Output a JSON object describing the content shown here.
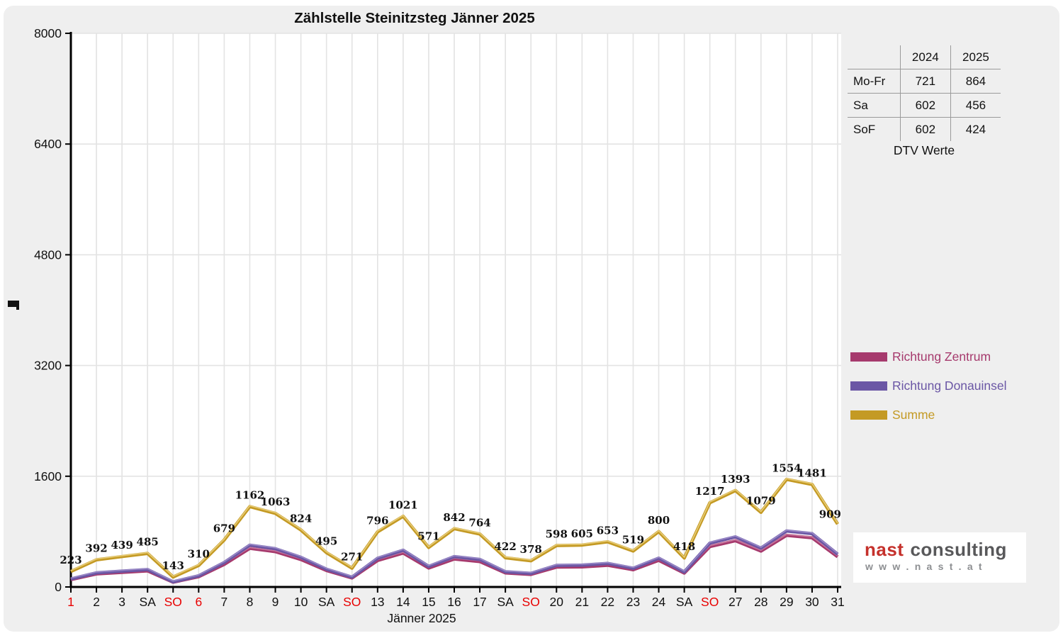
{
  "title": "Zählstelle Steinitzsteg Jänner 2025",
  "x_axis_title": "Jänner 2025",
  "chart_data": {
    "type": "line",
    "x_tick_labels": [
      "1",
      "2",
      "3",
      "SA",
      "SO",
      "6",
      "7",
      "8",
      "9",
      "10",
      "SA",
      "SO",
      "13",
      "14",
      "15",
      "16",
      "17",
      "SA",
      "SO",
      "20",
      "21",
      "22",
      "23",
      "24",
      "SA",
      "SO",
      "27",
      "28",
      "29",
      "30",
      "31"
    ],
    "x_tick_red_indexes": [
      0,
      4,
      5,
      11,
      18,
      25
    ],
    "y_ticks": [
      0,
      1600,
      3200,
      4800,
      6400,
      8000
    ],
    "ylim": [
      0,
      8000
    ],
    "grid": true,
    "legend_position": "right",
    "series": [
      {
        "name": "Richtung Zentrum",
        "color": "#A63A6D",
        "highlight": "#C97BA1",
        "values": [
          107,
          188,
          211,
          233,
          69,
          149,
          326,
          558,
          510,
          396,
          238,
          130,
          382,
          490,
          274,
          404,
          367,
          203,
          181,
          287,
          290,
          313,
          249,
          384,
          201,
          584,
          669,
          518,
          746,
          711,
          436
        ],
        "data_labels": false
      },
      {
        "name": "Richtung Donauinsel",
        "color": "#6B57A5",
        "highlight": "#9D8DC9",
        "values": [
          116,
          204,
          228,
          252,
          74,
          161,
          353,
          604,
          553,
          428,
          257,
          141,
          414,
          531,
          297,
          438,
          397,
          219,
          197,
          311,
          315,
          340,
          270,
          416,
          217,
          633,
          724,
          561,
          808,
          770,
          473
        ],
        "data_labels": false
      },
      {
        "name": "Summe",
        "color": "#C49A24",
        "highlight": "#E9CF7C",
        "values": [
          223,
          392,
          439,
          485,
          143,
          310,
          679,
          1162,
          1063,
          824,
          495,
          271,
          796,
          1021,
          571,
          842,
          764,
          422,
          378,
          598,
          605,
          653,
          519,
          800,
          418,
          1217,
          1393,
          1079,
          1554,
          1481,
          909
        ],
        "data_labels": true
      }
    ]
  },
  "table": {
    "header": [
      "",
      "2024",
      "2025"
    ],
    "rows": [
      {
        "label": "Mo-Fr",
        "y2024": "721",
        "y2025": "864"
      },
      {
        "label": "Sa",
        "y2024": "602",
        "y2025": "456"
      },
      {
        "label": "SoF",
        "y2024": "602",
        "y2025": "424"
      }
    ],
    "caption": "DTV Werte"
  },
  "logo": {
    "brand": "nast",
    "suffix": "consulting",
    "url": "w w w . n a s t . a t"
  },
  "colors": {
    "panel_background": "#efefef",
    "plot_background": "#ffffff",
    "grid_line": "#e3e3e3",
    "axis": "#000000",
    "red_tick_label": "#e80000",
    "data_label": "#111111"
  }
}
